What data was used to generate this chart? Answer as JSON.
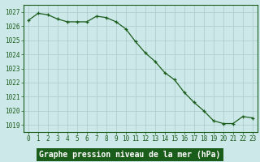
{
  "hours": [
    0,
    1,
    2,
    3,
    4,
    5,
    6,
    7,
    8,
    9,
    10,
    11,
    12,
    13,
    14,
    15,
    16,
    17,
    18,
    19,
    20,
    21,
    22,
    23
  ],
  "pressure": [
    1026.4,
    1026.9,
    1026.8,
    1026.5,
    1026.3,
    1026.3,
    1026.3,
    1026.7,
    1026.6,
    1026.3,
    1025.8,
    1024.9,
    1024.1,
    1023.5,
    1022.7,
    1022.2,
    1021.3,
    1020.6,
    1020.0,
    1019.3,
    1019.1,
    1019.1,
    1019.6,
    1019.5
  ],
  "line_color": "#1a5c1a",
  "marker": "+",
  "bg_color": "#cce8e8",
  "grid_color": "#aacccc",
  "xlabel": "Graphe pression niveau de la mer (hPa)",
  "xlabel_fontsize": 7.0,
  "xlabel_bg": "#1a5c1a",
  "xlabel_fg": "#ffffff",
  "ylim": [
    1018.5,
    1027.5
  ],
  "yticks": [
    1019,
    1020,
    1021,
    1022,
    1023,
    1024,
    1025,
    1026,
    1027
  ],
  "xticks": [
    0,
    1,
    2,
    3,
    4,
    5,
    6,
    7,
    8,
    9,
    10,
    11,
    12,
    13,
    14,
    15,
    16,
    17,
    18,
    19,
    20,
    21,
    22,
    23
  ],
  "tick_fontsize": 5.5,
  "tick_color": "#1a5c1a"
}
